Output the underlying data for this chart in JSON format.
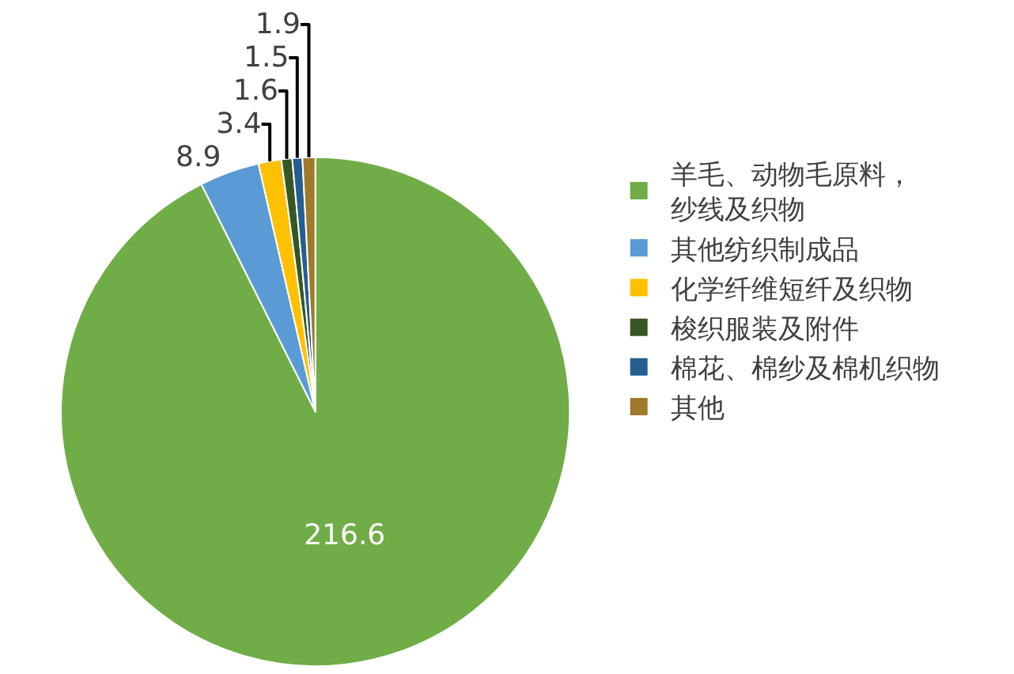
{
  "chart_data": {
    "type": "pie",
    "categories": [
      "羊毛、动物毛原料，纱线及织物",
      "其他纺织制成品",
      "化学纤维短纤及织物",
      "梭织服装及附件",
      "棉花、棉纱及棉机织物",
      "其他"
    ],
    "values": [
      216.6,
      8.9,
      3.4,
      1.6,
      1.5,
      1.9
    ],
    "colors": [
      "#70ad47",
      "#5b9bd5",
      "#ffc000",
      "#375623",
      "#255e91",
      "#9e7a2a"
    ],
    "data_labels": true,
    "legend": "right"
  }
}
